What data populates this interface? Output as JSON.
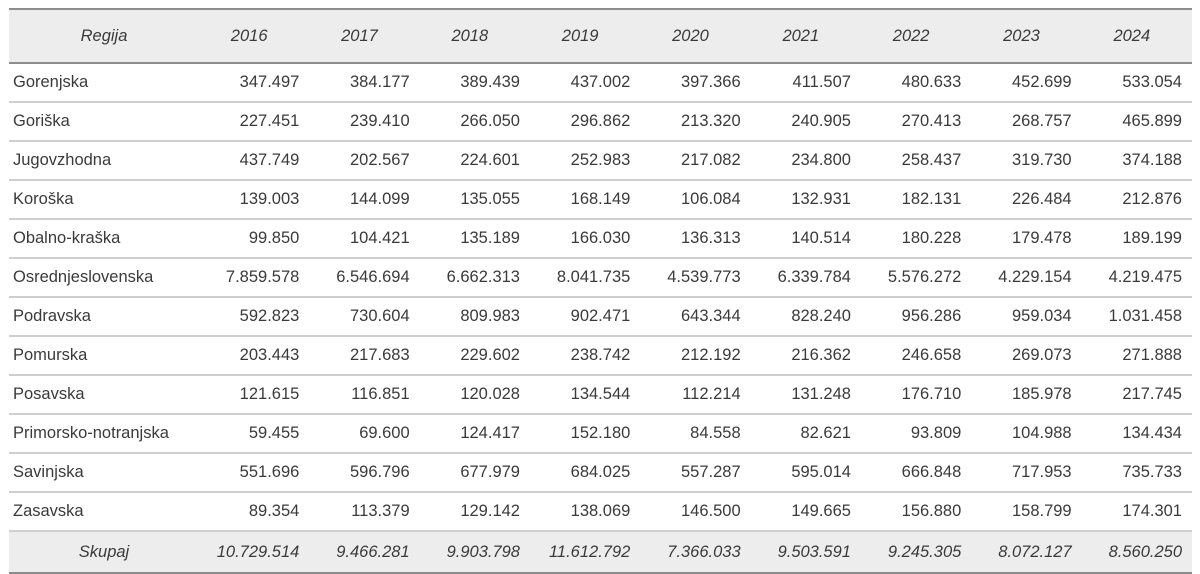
{
  "chart_data": {
    "type": "table",
    "header": {
      "region_label": "Regija",
      "years": [
        "2016",
        "2017",
        "2018",
        "2019",
        "2020",
        "2021",
        "2022",
        "2023",
        "2024"
      ]
    },
    "rows": [
      {
        "region": "Gorenjska",
        "values": [
          "347.497",
          "384.177",
          "389.439",
          "437.002",
          "397.366",
          "411.507",
          "480.633",
          "452.699",
          "533.054"
        ]
      },
      {
        "region": "Goriška",
        "values": [
          "227.451",
          "239.410",
          "266.050",
          "296.862",
          "213.320",
          "240.905",
          "270.413",
          "268.757",
          "465.899"
        ]
      },
      {
        "region": "Jugovzhodna",
        "values": [
          "437.749",
          "202.567",
          "224.601",
          "252.983",
          "217.082",
          "234.800",
          "258.437",
          "319.730",
          "374.188"
        ]
      },
      {
        "region": "Koroška",
        "values": [
          "139.003",
          "144.099",
          "135.055",
          "168.149",
          "106.084",
          "132.931",
          "182.131",
          "226.484",
          "212.876"
        ]
      },
      {
        "region": "Obalno-kraška",
        "values": [
          "99.850",
          "104.421",
          "135.189",
          "166.030",
          "136.313",
          "140.514",
          "180.228",
          "179.478",
          "189.199"
        ]
      },
      {
        "region": "Osrednjeslovenska",
        "values": [
          "7.859.578",
          "6.546.694",
          "6.662.313",
          "8.041.735",
          "4.539.773",
          "6.339.784",
          "5.576.272",
          "4.229.154",
          "4.219.475"
        ]
      },
      {
        "region": "Podravska",
        "values": [
          "592.823",
          "730.604",
          "809.983",
          "902.471",
          "643.344",
          "828.240",
          "956.286",
          "959.034",
          "1.031.458"
        ]
      },
      {
        "region": "Pomurska",
        "values": [
          "203.443",
          "217.683",
          "229.602",
          "238.742",
          "212.192",
          "216.362",
          "246.658",
          "269.073",
          "271.888"
        ]
      },
      {
        "region": "Posavska",
        "values": [
          "121.615",
          "116.851",
          "120.028",
          "134.544",
          "112.214",
          "131.248",
          "176.710",
          "185.978",
          "217.745"
        ]
      },
      {
        "region": "Primorsko-notranjska",
        "values": [
          "59.455",
          "69.600",
          "124.417",
          "152.180",
          "84.558",
          "82.621",
          "93.809",
          "104.988",
          "134.434"
        ]
      },
      {
        "region": "Savinjska",
        "values": [
          "551.696",
          "596.796",
          "677.979",
          "684.025",
          "557.287",
          "595.014",
          "666.848",
          "717.953",
          "735.733"
        ]
      },
      {
        "region": "Zasavska",
        "values": [
          "89.354",
          "113.379",
          "129.142",
          "138.069",
          "146.500",
          "149.665",
          "156.880",
          "158.799",
          "174.301"
        ]
      }
    ],
    "footer": {
      "label": "Skupaj",
      "values": [
        "10.729.514",
        "9.466.281",
        "9.903.798",
        "11.612.792",
        "7.366.033",
        "9.503.591",
        "9.245.305",
        "8.072.127",
        "8.560.250"
      ]
    }
  },
  "colors": {
    "header_bg": "#ededed",
    "footer_bg": "#ededed",
    "border_dark": "#8c8c8c",
    "border_light": "#cfcfcf",
    "text": "#3a3a3a",
    "background": "#ffffff"
  }
}
